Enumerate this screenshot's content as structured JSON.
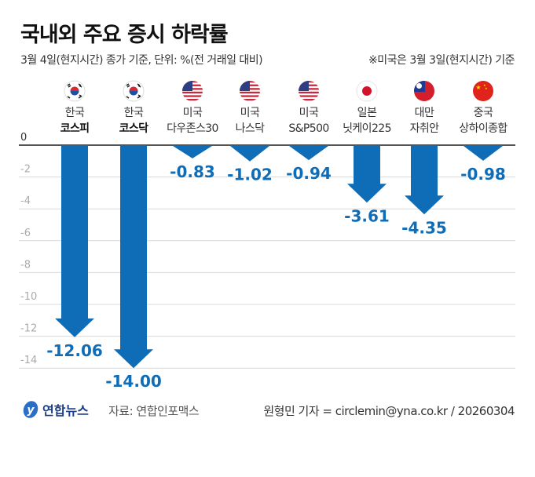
{
  "title": "국내외 주요 증시 하락률",
  "subtitle": "3월 4일(현지시간) 종가 기준, 단위: %(전 거래일 대비)",
  "note": "※미국은 3월 3일(현지시간) 기준",
  "colors": {
    "arrow": "#0f6db8",
    "label": "#0f6db8",
    "grid": "#d9d9d9",
    "axis": "#555555"
  },
  "chart_data": {
    "type": "bar",
    "orientation": "downward arrows",
    "categories": [
      {
        "country": "한국",
        "index": "코스피",
        "flag": "korea-flag",
        "bold": true
      },
      {
        "country": "한국",
        "index": "코스닥",
        "flag": "korea-flag",
        "bold": true
      },
      {
        "country": "미국",
        "index": "다우존스30",
        "flag": "us-flag",
        "bold": false
      },
      {
        "country": "미국",
        "index": "나스닥",
        "flag": "us-flag",
        "bold": false
      },
      {
        "country": "미국",
        "index": "S&P500",
        "flag": "us-flag",
        "bold": false
      },
      {
        "country": "일본",
        "index": "닛케이225",
        "flag": "japan-flag",
        "bold": false
      },
      {
        "country": "대만",
        "index": "자취안",
        "flag": "taiwan-flag",
        "bold": false
      },
      {
        "country": "중국",
        "index": "상하이종합",
        "flag": "china-flag",
        "bold": false
      }
    ],
    "values": [
      -12.06,
      -14.0,
      -0.83,
      -1.02,
      -0.94,
      -3.61,
      -4.35,
      -0.98
    ],
    "value_labels": [
      "-12.06",
      "-14.00",
      "-0.83",
      "-1.02",
      "-0.94",
      "-3.61",
      "-4.35",
      "-0.98"
    ],
    "yticks": [
      "0",
      "-2",
      "-4",
      "-6",
      "-8",
      "-10",
      "-12",
      "-14"
    ],
    "ytick_values": [
      0,
      -2,
      -4,
      -6,
      -8,
      -10,
      -12,
      -14
    ],
    "ylim": [
      -14,
      0
    ],
    "grid": true,
    "legend": "none"
  },
  "footer": {
    "logo": "연합뉴스",
    "source": "자료: 연합인포맥스",
    "author": "원형민 기자 = circlemin@yna.co.kr / 20260304"
  }
}
